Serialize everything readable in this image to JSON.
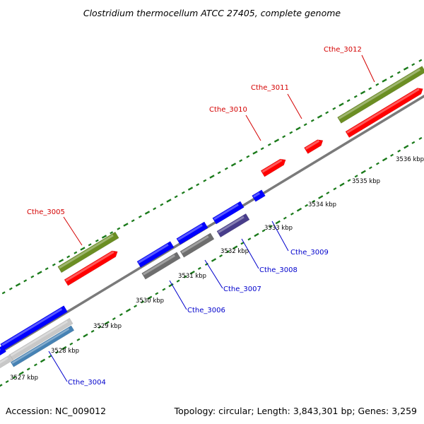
{
  "title": "Clostridium thermocellum ATCC 27405, complete genome",
  "footer": {
    "accession": "Accession: NC_009012",
    "summary": "Topology: circular; Length: 3,843,301 bp; Genes: 3,259"
  },
  "scale_labels": [
    "3527 kbp",
    "3528 kbp",
    "3529 kbp",
    "3530 kbp",
    "3531 kbp",
    "3532 kbp",
    "3533 kbp",
    "3534 kbp",
    "3535 kbp",
    "3536 kbp"
  ],
  "gene_labels": {
    "forward": [
      "Cthe_3005",
      "Cthe_3010",
      "Cthe_3011",
      "Cthe_3012"
    ],
    "reverse": [
      "Cthe_3004",
      "Cthe_3006",
      "Cthe_3007",
      "Cthe_3008",
      "Cthe_3009"
    ]
  },
  "colors": {
    "backbone": "#7a7a7a",
    "forward_cds": "#ff0000",
    "forward_rna": "#6b8e23",
    "reverse_cds": "#0000ff",
    "reverse_gray": "#6e6e6e",
    "reverse_slate": "#483d8b",
    "reverse_steel": "#4682b4",
    "light_gray": "#c8c8c8",
    "tick": "#1a7a1a",
    "label_red": "#d40000",
    "label_blue": "#0000cc"
  }
}
